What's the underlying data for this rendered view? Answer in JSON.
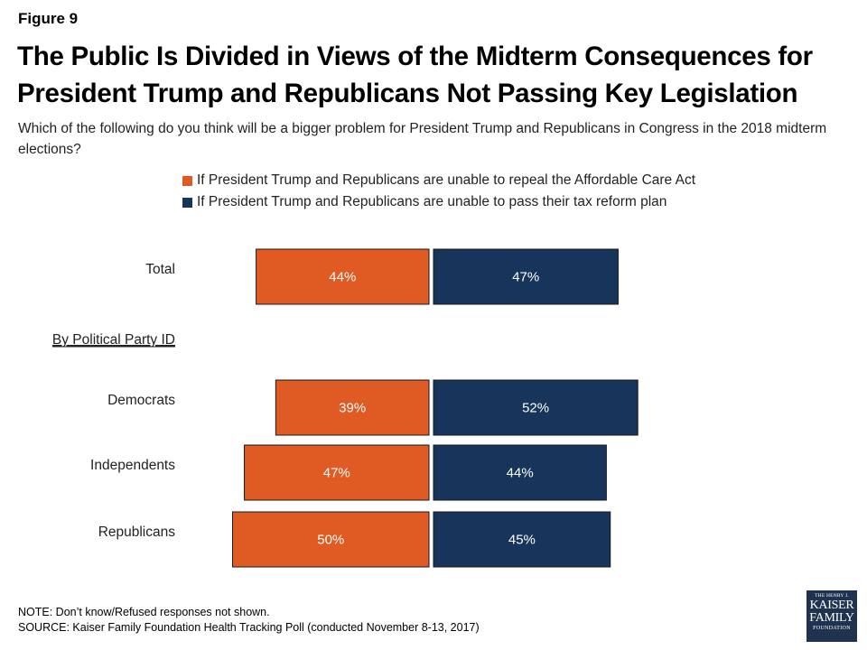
{
  "figure_label": "Figure 9",
  "title": "The Public Is Divided in Views of the Midterm Consequences for President Trump and Republicans Not Passing Key Legislation",
  "subtitle": "Which of the following do you think will be a bigger problem for President Trump and Republicans in Congress in the 2018 midterm elections?",
  "colors": {
    "aca": "#e05a24",
    "tax": "#17345a",
    "bar_border": "#1a1a1a"
  },
  "chart_data": {
    "type": "bar",
    "orientation": "horizontal-diverging",
    "title": "The Public Is Divided in Views of the Midterm Consequences for President Trump and Republicans Not Passing Key Legislation",
    "categories": [
      "Total",
      "Democrats",
      "Independents",
      "Republicans"
    ],
    "group_header": "By Political Party ID",
    "series": [
      {
        "name": "If President Trump and Republicans are unable to repeal the Affordable Care Act",
        "values": [
          44,
          39,
          47,
          50
        ],
        "labels": [
          "44%",
          "39%",
          "47%",
          "50%"
        ],
        "color": "#e05a24"
      },
      {
        "name": "If President Trump and Republicans are unable to pass their tax reform plan",
        "values": [
          47,
          52,
          44,
          45
        ],
        "labels": [
          "47%",
          "52%",
          "44%",
          "45%"
        ],
        "color": "#17345a"
      }
    ],
    "unit": "%",
    "legend_position": "top",
    "grid": false
  },
  "footer": {
    "note": "NOTE: Don’t know/Refused responses not shown.",
    "source": "SOURCE: Kaiser Family Foundation Health Tracking Poll (conducted November 8-13, 2017)"
  },
  "logo": {
    "line1": "THE HENRY J.",
    "line2": "KAISER",
    "line3": "FAMILY",
    "line4": "FOUNDATION"
  }
}
